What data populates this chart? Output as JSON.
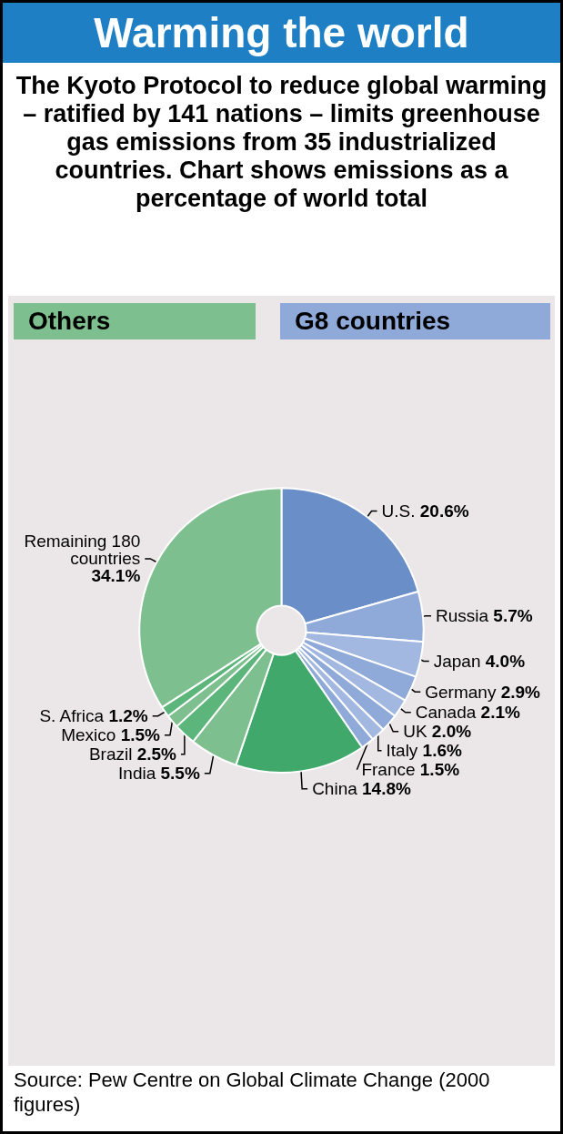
{
  "chart_data": {
    "type": "donut",
    "title": "Warming the world",
    "subtitle": "The Kyoto Protocol to reduce global warming – ratified by 141 nations – limits greenhouse gas emissions from 35 industrialized countries. Chart shows emissions as a percentage of world total",
    "categories": [
      "U.S.",
      "Russia",
      "Japan",
      "Germany",
      "Canada",
      "UK",
      "Italy",
      "France",
      "China",
      "India",
      "Brazil",
      "Mexico",
      "S. Africa",
      "Remaining 180 countries"
    ],
    "values": [
      20.6,
      5.7,
      4.0,
      2.9,
      2.1,
      2.0,
      1.6,
      1.5,
      14.8,
      5.5,
      2.5,
      1.5,
      1.2,
      34.1
    ],
    "value_labels": [
      "20.6%",
      "5.7%",
      "4.0%",
      "2.9%",
      "2.1%",
      "2.0%",
      "1.6%",
      "1.5%",
      "14.8%",
      "5.5%",
      "2.5%",
      "1.5%",
      "1.2%",
      "34.1%"
    ],
    "colors": [
      "#6a8fc8",
      "#8fa9d8",
      "#a3b8e0",
      "#8fa9d8",
      "#a3b8e0",
      "#8fa9d8",
      "#a3b8e0",
      "#8fa9d8",
      "#3fa86a",
      "#7dbf8e",
      "#5cb57a",
      "#7dbf8e",
      "#5cb57a",
      "#7dbf8e"
    ],
    "annotations": [
      "Others",
      "G8 countries",
      "Source: Pew Centre on Global Climate Change (2000 figures)"
    ],
    "legend": false
  }
}
